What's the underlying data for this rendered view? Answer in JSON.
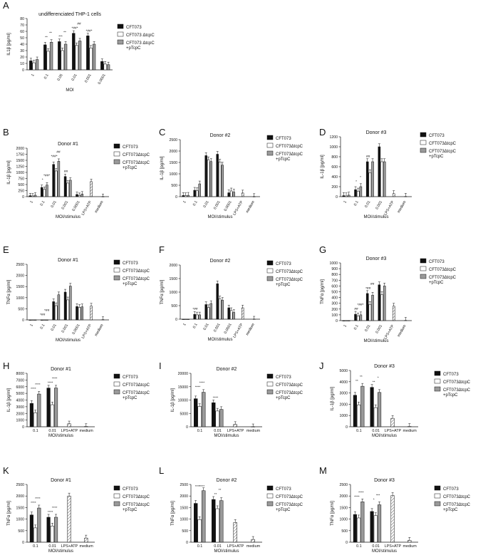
{
  "colors": {
    "bar1": "#111111",
    "bar2": "#ffffff",
    "bar3": "#9a9a9a",
    "hatch": "#a8a8a8"
  },
  "legend_labels": {
    "cft073": "CFT073",
    "mutant": "CFT073ΔtcpC",
    "mutant_alt": "CFT073 ΔtcpC",
    "complemented_1": "CFT073ΔtcpC",
    "complemented_1_alt": "CFT073 ΔtcpC",
    "complemented_2": "+pTcpC"
  },
  "chart_data": [
    {
      "panel": "A",
      "type": "bar",
      "title": "undifferenciated THP-1 cells",
      "ylabel": "IL1β [pg/ml]",
      "xlabel": "MOI",
      "ylim": [
        0,
        80
      ],
      "yticks": [
        0,
        10,
        20,
        30,
        40,
        50,
        60,
        70,
        80
      ],
      "categories": [
        "1",
        "0.1",
        "0.05",
        "0.01",
        "0.001",
        "0.0001"
      ],
      "series": [
        {
          "name": "CFT073",
          "values": [
            14,
            39,
            44,
            57,
            53,
            13
          ]
        },
        {
          "name": "CFT073ΔtcpC",
          "values": [
            11,
            29,
            30,
            38,
            34,
            9
          ]
        },
        {
          "name": "CFT073ΔtcpC +pTcpC",
          "values": [
            16,
            43,
            40,
            45,
            40,
            8
          ]
        }
      ],
      "annotations": [
        "**",
        "**",
        "***",
        "**",
        "*##*",
        "##",
        "*##*"
      ]
    },
    {
      "panel": "B",
      "type": "bar",
      "title": "Donor #1",
      "ylabel": "IL-1β [pg/ml]",
      "xlabel": "MOI/stimulus",
      "ylim": [
        0,
        2000
      ],
      "yticks": [
        0,
        250,
        500,
        750,
        1000,
        1250,
        1500,
        1750,
        2000
      ],
      "categories": [
        "1",
        "0.1",
        "0.01",
        "0.001",
        "0.0001",
        "LPS+ATP",
        "medium"
      ],
      "series": [
        {
          "name": "CFT073",
          "values": [
            40,
            380,
            1330,
            830,
            90,
            null,
            null
          ]
        },
        {
          "name": "CFT073ΔtcpC",
          "values": [
            30,
            300,
            1060,
            560,
            50,
            null,
            null
          ]
        },
        {
          "name": "CFT073ΔtcpC +pTcpC",
          "values": [
            60,
            480,
            1460,
            680,
            110,
            null,
            null
          ]
        },
        {
          "name": "LPS+ATP",
          "values": [
            null,
            null,
            null,
            null,
            null,
            620,
            5
          ]
        }
      ],
      "annotations": [
        "*",
        "*##*",
        "*##*",
        "##",
        "##"
      ]
    },
    {
      "panel": "C",
      "type": "bar",
      "title": "Donor #2",
      "ylabel": "IL-1β [pg/ml]",
      "xlabel": "MOI/stimulus",
      "ylim": [
        0,
        2500
      ],
      "yticks": [
        0,
        500,
        1000,
        1500,
        2000,
        2500
      ],
      "categories": [
        "1",
        "0.1",
        "0.01",
        "0.001",
        "0.0001",
        "LPS+ATP",
        "medium"
      ],
      "series": [
        {
          "name": "CFT073",
          "values": [
            50,
            280,
            1800,
            1860,
            170,
            null,
            null
          ]
        },
        {
          "name": "CFT073ΔtcpC",
          "values": [
            40,
            260,
            1620,
            1520,
            250,
            null,
            null
          ]
        },
        {
          "name": "CFT073ΔtcpC +pTcpC",
          "values": [
            60,
            560,
            1540,
            1380,
            200,
            null,
            null
          ]
        },
        {
          "name": "LPS+ATP",
          "values": [
            null,
            null,
            null,
            null,
            null,
            160,
            5
          ]
        }
      ],
      "annotations": []
    },
    {
      "panel": "D",
      "type": "bar",
      "title": "Donor #3",
      "ylabel": "IL-1β [pg/ml]",
      "xlabel": "MOI/stimulus",
      "ylim": [
        0,
        1200
      ],
      "yticks": [
        0,
        200,
        400,
        600,
        800,
        1000,
        1200
      ],
      "categories": [
        "1",
        "0.1",
        "0.01",
        "0.001",
        "LPS+ATP",
        "medium"
      ],
      "series": [
        {
          "name": "CFT073",
          "values": [
            20,
            140,
            700,
            1000,
            null,
            null
          ]
        },
        {
          "name": "CFT073ΔtcpC",
          "values": [
            15,
            110,
            480,
            700,
            null,
            null
          ]
        },
        {
          "name": "CFT073ΔtcpC +pTcpC",
          "values": [
            30,
            200,
            700,
            700,
            null,
            null
          ]
        },
        {
          "name": "LPS+ATP",
          "values": [
            null,
            null,
            null,
            null,
            60,
            5
          ]
        }
      ],
      "annotations": [
        "*",
        "*",
        "##"
      ]
    },
    {
      "panel": "E",
      "type": "bar",
      "title": "Donor #1",
      "ylabel": "TNFα [pg/ml]",
      "xlabel": "MOI/stimulus",
      "ylim": [
        0,
        2500
      ],
      "yticks": [
        0,
        500,
        1000,
        1500,
        2000,
        2500
      ],
      "categories": [
        "1",
        "0.1",
        "0.01",
        "0.001",
        "0.0001",
        "LPS+ATP",
        "medium"
      ],
      "series": [
        {
          "name": "CFT073",
          "values": [
            0,
            0,
            820,
            1250,
            600,
            null,
            null
          ]
        },
        {
          "name": "CFT073ΔtcpC",
          "values": [
            0,
            0,
            640,
            900,
            560,
            null,
            null
          ]
        },
        {
          "name": "CFT073ΔtcpC +pTcpC",
          "values": [
            0,
            0,
            1130,
            1520,
            590,
            null,
            null
          ]
        },
        {
          "name": "LPS+ATP",
          "values": [
            null,
            null,
            null,
            null,
            null,
            620,
            15
          ]
        }
      ],
      "annotations": [
        "*##",
        "*##"
      ]
    },
    {
      "panel": "F",
      "type": "bar",
      "title": "Donor #2",
      "ylabel": "TNFα [pg/ml]",
      "xlabel": "MOI/stimulus",
      "ylim": [
        0,
        2000
      ],
      "yticks": [
        0,
        500,
        1000,
        1500,
        2000
      ],
      "categories": [
        "1",
        "0.1",
        "0.01",
        "0.001",
        "0.0001",
        "LPS+ATP",
        "medium"
      ],
      "series": [
        {
          "name": "CFT073",
          "values": [
            0,
            180,
            540,
            1310,
            420,
            null,
            null
          ]
        },
        {
          "name": "CFT073ΔtcpC",
          "values": [
            0,
            160,
            430,
            760,
            320,
            null,
            null
          ]
        },
        {
          "name": "CFT073ΔtcpC +pTcpC",
          "values": [
            0,
            160,
            580,
            700,
            250,
            null,
            null
          ]
        },
        {
          "name": "LPS+ATP",
          "values": [
            null,
            null,
            null,
            null,
            null,
            420,
            5
          ]
        }
      ],
      "annotations": [
        "*##"
      ]
    },
    {
      "panel": "G",
      "type": "bar",
      "title": "Donor #3",
      "ylabel": "TNFα [pg/ml]",
      "xlabel": "MOI/stimulus",
      "ylim": [
        0,
        1000
      ],
      "yticks": [
        0,
        100,
        200,
        300,
        400,
        500,
        600,
        700,
        800,
        900,
        1000
      ],
      "categories": [
        "1",
        "0.1",
        "0.01",
        "0.001",
        "LPS+ATP",
        "medium"
      ],
      "series": [
        {
          "name": "CFT073",
          "values": [
            0,
            110,
            470,
            620,
            null,
            null
          ]
        },
        {
          "name": "CFT073ΔtcpC",
          "values": [
            0,
            80,
            280,
            450,
            null,
            null
          ]
        },
        {
          "name": "CFT073ΔtcpC +pTcpC",
          "values": [
            0,
            100,
            440,
            600,
            null,
            null
          ]
        },
        {
          "name": "LPS+ATP",
          "values": [
            null,
            null,
            null,
            null,
            250,
            5
          ]
        }
      ],
      "annotations": [
        "##",
        "*##*",
        "*##",
        "##"
      ]
    },
    {
      "panel": "H",
      "type": "bar",
      "title": "Donor #1",
      "ylabel": "IL-1β [pg/ml]",
      "xlabel": "MOI/stimulus",
      "ylim": [
        0,
        8000
      ],
      "yticks": [
        0,
        1000,
        2000,
        3000,
        4000,
        5000,
        6000,
        7000,
        8000
      ],
      "categories": [
        "0.1",
        "0.01",
        "LPS+ATP",
        "medium"
      ],
      "series": [
        {
          "name": "CFT073",
          "values": [
            3500,
            5800,
            null,
            null
          ]
        },
        {
          "name": "CFT073ΔtcpC",
          "values": [
            2100,
            3300,
            null,
            null
          ]
        },
        {
          "name": "CFT073ΔtcpC +pTcpC",
          "values": [
            4900,
            5800,
            null,
            null
          ]
        },
        {
          "name": "LPS+ATP",
          "values": [
            null,
            null,
            450,
            50
          ]
        }
      ],
      "annotations": [
        "****",
        "****",
        "****",
        "****"
      ]
    },
    {
      "panel": "I",
      "type": "bar",
      "title": "Donor #2",
      "ylabel": "IL-1β [pg/ml]",
      "xlabel": "MOI/stimulus",
      "ylim": [
        0,
        20000
      ],
      "yticks": [
        0,
        5000,
        10000,
        15000,
        20000
      ],
      "categories": [
        "0.1",
        "0.01",
        "LPS+ATP",
        "medium"
      ],
      "series": [
        {
          "name": "CFT073",
          "values": [
            10500,
            9000,
            null,
            null
          ]
        },
        {
          "name": "CFT073ΔtcpC",
          "values": [
            7600,
            5900,
            null,
            null
          ]
        },
        {
          "name": "CFT073ΔtcpC +pTcpC",
          "values": [
            12900,
            6500,
            null,
            null
          ]
        },
        {
          "name": "LPS+ATP",
          "values": [
            null,
            null,
            900,
            50
          ]
        }
      ],
      "annotations": [
        "****",
        "****",
        "****"
      ]
    },
    {
      "panel": "J",
      "type": "bar",
      "title": "Donor #3",
      "ylabel": "IL-1β [pg/ml]",
      "xlabel": "MOI/stimulus",
      "ylim": [
        0,
        5000
      ],
      "yticks": [
        0,
        1000,
        2000,
        3000,
        4000,
        5000
      ],
      "categories": [
        "0.1",
        "0.01",
        "LPS+ATP",
        "medium"
      ],
      "series": [
        {
          "name": "CFT073",
          "values": [
            2800,
            3500,
            null,
            null
          ]
        },
        {
          "name": "CFT073ΔtcpC",
          "values": [
            1950,
            1700,
            null,
            null
          ]
        },
        {
          "name": "CFT073ΔtcpC +pTcpC",
          "values": [
            3600,
            3050,
            null,
            null
          ]
        },
        {
          "name": "LPS+ATP",
          "values": [
            null,
            null,
            750,
            30
          ]
        }
      ],
      "annotations": [
        "**",
        "**",
        "**",
        "*"
      ]
    },
    {
      "panel": "K",
      "type": "bar",
      "title": "Donor #1",
      "ylabel": "TNFα [pg/ml]",
      "xlabel": "MOI/stimulus",
      "ylim": [
        0,
        2500
      ],
      "yticks": [
        0,
        500,
        1000,
        1500,
        2000,
        2500
      ],
      "categories": [
        "0.1",
        "0.01",
        "LPS+ATP",
        "medium"
      ],
      "series": [
        {
          "name": "CFT073",
          "values": [
            1180,
            1080,
            null,
            null
          ]
        },
        {
          "name": "CFT073ΔtcpC",
          "values": [
            620,
            700,
            null,
            null
          ]
        },
        {
          "name": "CFT073ΔtcpC +pTcpC",
          "values": [
            1480,
            1080,
            null,
            null
          ]
        },
        {
          "name": "LPS+ATP",
          "values": [
            null,
            null,
            2000,
            180
          ]
        }
      ],
      "annotations": [
        "****",
        "****",
        "****",
        "****"
      ]
    },
    {
      "panel": "L",
      "type": "bar",
      "title": "Donor #2",
      "ylabel": "TNFα [pg/ml]",
      "xlabel": "MOI/stimulus",
      "ylim": [
        0,
        2500
      ],
      "yticks": [
        0,
        500,
        1000,
        1500,
        2000,
        2500
      ],
      "categories": [
        "0.1",
        "0.01",
        "LPS+ATP",
        "medium"
      ],
      "series": [
        {
          "name": "CFT073",
          "values": [
            1680,
            1850,
            null,
            null
          ]
        },
        {
          "name": "CFT073ΔtcpC",
          "values": [
            980,
            1450,
            null,
            null
          ]
        },
        {
          "name": "CFT073ΔtcpC +pTcpC",
          "values": [
            2230,
            1800,
            null,
            null
          ]
        },
        {
          "name": "LPS+ATP",
          "values": [
            null,
            null,
            850,
            120
          ]
        }
      ],
      "annotations": [
        "****",
        "****",
        "**",
        "**"
      ]
    },
    {
      "panel": "M",
      "type": "bar",
      "title": "Donor #3",
      "ylabel": "TNFα [pg/ml]",
      "xlabel": "MOI/stimulus",
      "ylim": [
        0,
        2500
      ],
      "yticks": [
        0,
        500,
        1000,
        1500,
        2000,
        2500
      ],
      "categories": [
        "0.1",
        "0.01",
        "LPS+ATP",
        "medium"
      ],
      "series": [
        {
          "name": "CFT073",
          "values": [
            1200,
            1330,
            null,
            null
          ]
        },
        {
          "name": "CFT073ΔtcpC",
          "values": [
            1050,
            1150,
            null,
            null
          ]
        },
        {
          "name": "CFT073ΔtcpC +pTcpC",
          "values": [
            1750,
            1620,
            null,
            null
          ]
        },
        {
          "name": "LPS+ATP",
          "values": [
            null,
            null,
            2020,
            80
          ]
        }
      ],
      "annotations": [
        "****",
        "****",
        "*",
        "***"
      ]
    }
  ]
}
